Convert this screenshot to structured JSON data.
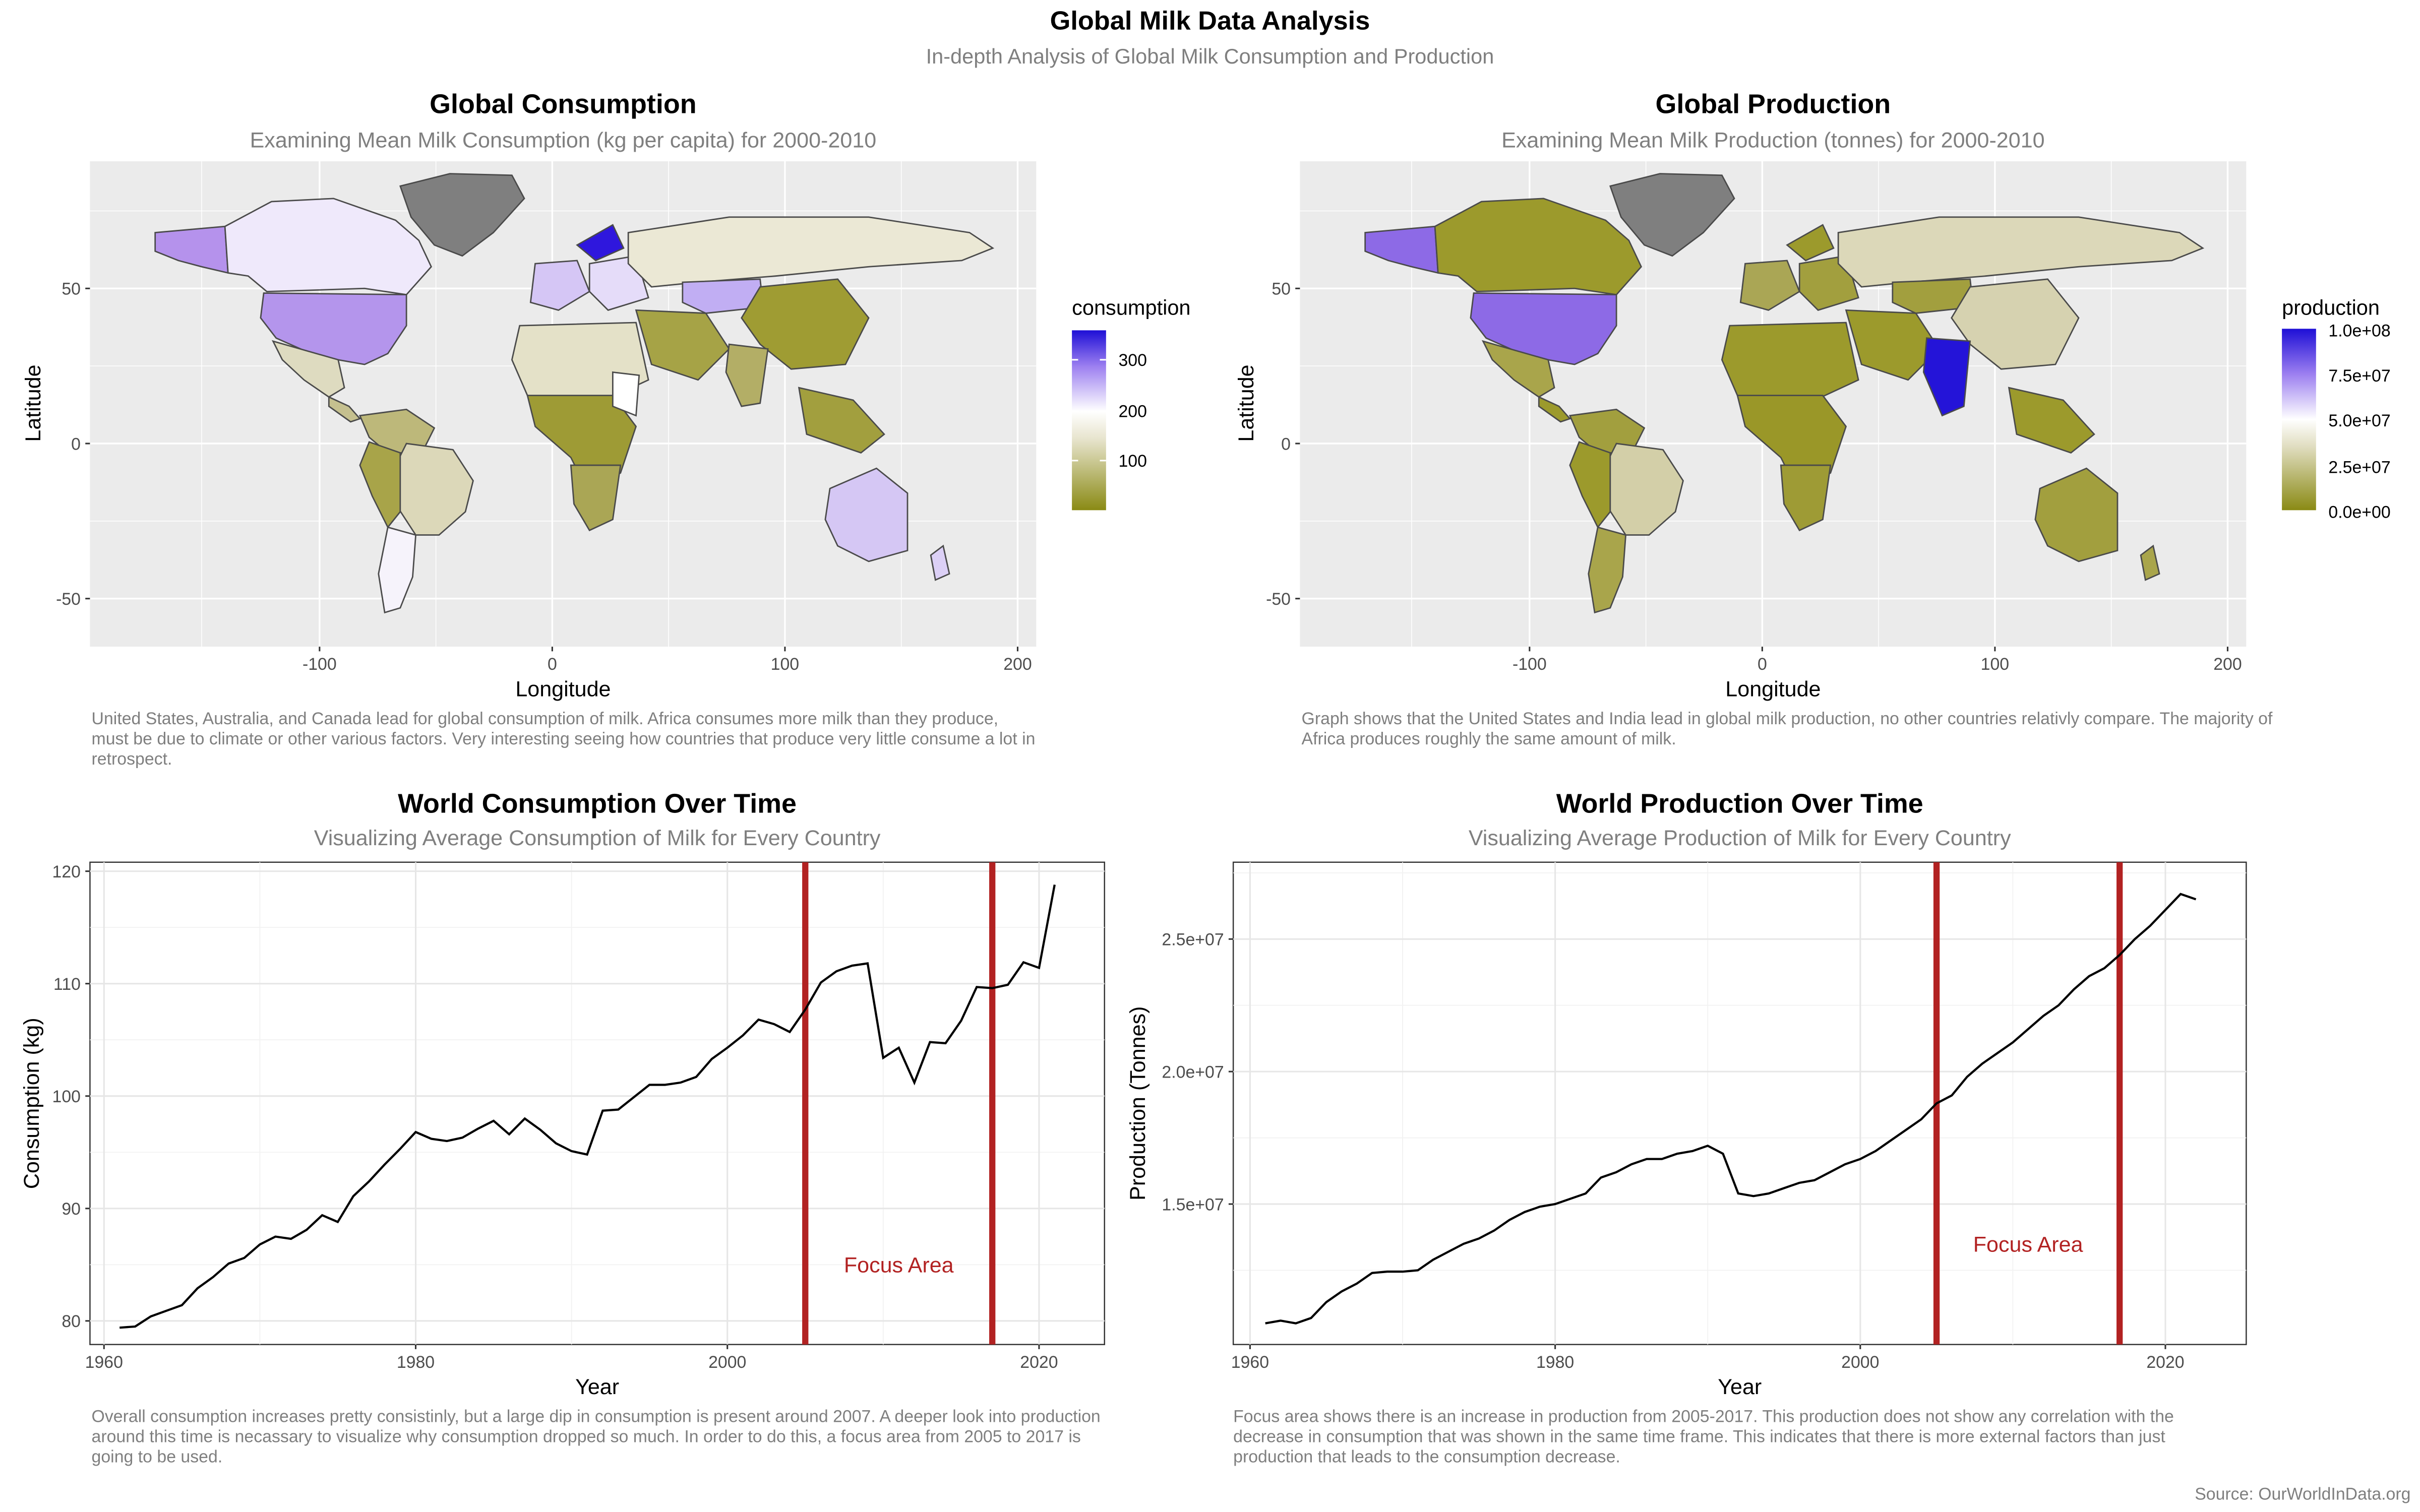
{
  "header": {
    "title": "Global Milk Data Analysis",
    "subtitle": "In-depth Analysis of Global Milk Consumption and Production",
    "source": "Source: OurWorldInData.org"
  },
  "colors": {
    "panel_bg": "#ebebeb",
    "grid": "#ffffff",
    "no_data": "#7f7f7f",
    "scale_low": "#8a8a14",
    "scale_mid_low": "#e0ddc0",
    "scale_mid": "#ffffff",
    "scale_high_mid": "#9c7ff0",
    "scale_high": "#1e0fd6",
    "focus_line": "#b22222",
    "series_line": "#000000"
  },
  "consumption_map": {
    "title": "Global Consumption",
    "subtitle": "Examining Mean Milk Consumption (kg per capita) for 2000-2010",
    "xlabel": "Longitude",
    "ylabel": "Latitude",
    "x_ticks": [
      "-100",
      "0",
      "100",
      "200"
    ],
    "y_ticks": [
      "-50",
      "0",
      "50"
    ],
    "legend_title": "consumption",
    "legend_labels": [
      "300",
      "200",
      "100"
    ],
    "caption": "United States, Australia, and Canada lead for global consumption of milk. Africa consumes more milk than they produce, must be due to climate or other various factors. Very interesting seeing how countries that produce very little consume a lot in retrospect."
  },
  "production_map": {
    "title": "Global Production",
    "subtitle": "Examining Mean Milk Production (tonnes) for 2000-2010",
    "xlabel": "Longitude",
    "ylabel": "Latitude",
    "x_ticks": [
      "-100",
      "0",
      "100",
      "200"
    ],
    "y_ticks": [
      "-50",
      "0",
      "50"
    ],
    "legend_title": "production",
    "legend_labels": [
      "1.0e+08",
      "7.5e+07",
      "5.0e+07",
      "2.5e+07",
      "0.0e+00"
    ],
    "caption": "Graph shows that the United States and India lead in global milk production, no other countries relativly compare. The majority of Africa produces roughly the same amount of milk."
  },
  "chart_data": [
    {
      "type": "line",
      "title": "World Consumption Over Time",
      "subtitle": "Visualizing Average Consumption of Milk for Every Country",
      "xlabel": "Year",
      "ylabel": "Consumption (kg)",
      "xlim": [
        1959.1,
        2024.2
      ],
      "ylim": [
        77.9,
        120.8
      ],
      "x_ticks": [
        1960,
        1980,
        2000,
        2020
      ],
      "y_ticks": [
        80,
        90,
        100,
        110,
        120
      ],
      "grid": true,
      "focus_lines": [
        2005,
        2017
      ],
      "annotation": {
        "text": "Focus Area",
        "x": 2011,
        "y": 85
      },
      "caption": "Overall consumption increases pretty consistinly, but a large dip in consumption is present around 2007. A deeper look into production around this time is necassary to visualize why consumption dropped so much. In order to do this, a focus area from 2005 to 2017 is going to be used.",
      "x": [
        1961,
        1962,
        1963,
        1964,
        1965,
        1966,
        1967,
        1968,
        1969,
        1970,
        1971,
        1972,
        1973,
        1974,
        1975,
        1976,
        1977,
        1978,
        1979,
        1980,
        1981,
        1982,
        1983,
        1984,
        1985,
        1986,
        1987,
        1988,
        1989,
        1990,
        1991,
        1992,
        1993,
        1994,
        1995,
        1996,
        1997,
        1998,
        1999,
        2000,
        2001,
        2002,
        2003,
        2004,
        2005,
        2006,
        2007,
        2008,
        2009,
        2010,
        2011,
        2012,
        2013,
        2014,
        2015,
        2016,
        2017,
        2018,
        2019,
        2020,
        2021
      ],
      "y": [
        79.4,
        79.5,
        80.4,
        80.9,
        81.4,
        82.9,
        83.9,
        85.1,
        85.6,
        86.8,
        87.5,
        87.3,
        88.1,
        89.4,
        88.8,
        91.1,
        92.4,
        93.9,
        95.3,
        96.8,
        96.2,
        96.0,
        96.3,
        97.1,
        97.8,
        96.6,
        98.0,
        97.0,
        95.8,
        95.1,
        94.8,
        98.7,
        98.8,
        99.9,
        101.0,
        101.0,
        101.2,
        101.7,
        103.3,
        104.3,
        105.4,
        106.8,
        106.4,
        105.7,
        107.7,
        110.1,
        111.1,
        111.6,
        111.8,
        103.4,
        104.3,
        101.2,
        104.8,
        104.7,
        106.7,
        109.7,
        109.6,
        109.9,
        111.9,
        111.4,
        118.8
      ]
    },
    {
      "type": "line",
      "title": "World Production Over Time",
      "subtitle": "Visualizing Average Production of Milk for Every Country",
      "xlabel": "Year",
      "ylabel": "Production (Tonnes)",
      "xlim": [
        1958.9,
        2025.3
      ],
      "ylim": [
        9700000,
        27900000
      ],
      "x_ticks": [
        1960,
        1980,
        2000,
        2020
      ],
      "y_ticks": [
        "1.5e+07",
        "2.0e+07",
        "2.5e+07"
      ],
      "grid": true,
      "focus_lines": [
        2005,
        2017
      ],
      "annotation": {
        "text": "Focus Area",
        "x": 2011,
        "y": 13500000
      },
      "caption": "Focus area shows there is an increase in production from 2005-2017. This production does not show any correlation with the decrease in consumption that was shown in the same time frame. This indicates that there is more external factors than just production that leads to the consumption decrease.",
      "x": [
        1961,
        1962,
        1963,
        1964,
        1965,
        1966,
        1967,
        1968,
        1969,
        1970,
        1971,
        1972,
        1973,
        1974,
        1975,
        1976,
        1977,
        1978,
        1979,
        1980,
        1981,
        1982,
        1983,
        1984,
        1985,
        1986,
        1987,
        1988,
        1989,
        1990,
        1991,
        1992,
        1993,
        1994,
        1995,
        1996,
        1997,
        1998,
        1999,
        2000,
        2001,
        2002,
        2003,
        2004,
        2005,
        2006,
        2007,
        2008,
        2009,
        2010,
        2011,
        2012,
        2013,
        2014,
        2015,
        2016,
        2017,
        2018,
        2019,
        2020,
        2021,
        2022
      ],
      "y": [
        10500000,
        10600000,
        10500000,
        10700000,
        11300000,
        11700000,
        12000000,
        12400000,
        12450000,
        12450000,
        12500000,
        12900000,
        13200000,
        13500000,
        13700000,
        14000000,
        14400000,
        14700000,
        14900000,
        15000000,
        15200000,
        15400000,
        16000000,
        16200000,
        16500000,
        16700000,
        16700000,
        16900000,
        17000000,
        17200000,
        16900000,
        15400000,
        15300000,
        15400000,
        15600000,
        15800000,
        15900000,
        16200000,
        16500000,
        16700000,
        17000000,
        17400000,
        17800000,
        18200000,
        18800000,
        19100000,
        19800000,
        20300000,
        20700000,
        21100000,
        21600000,
        22100000,
        22500000,
        23100000,
        23600000,
        23900000,
        24400000,
        25000000,
        25500000,
        26100000,
        26700000,
        26500000
      ]
    }
  ]
}
